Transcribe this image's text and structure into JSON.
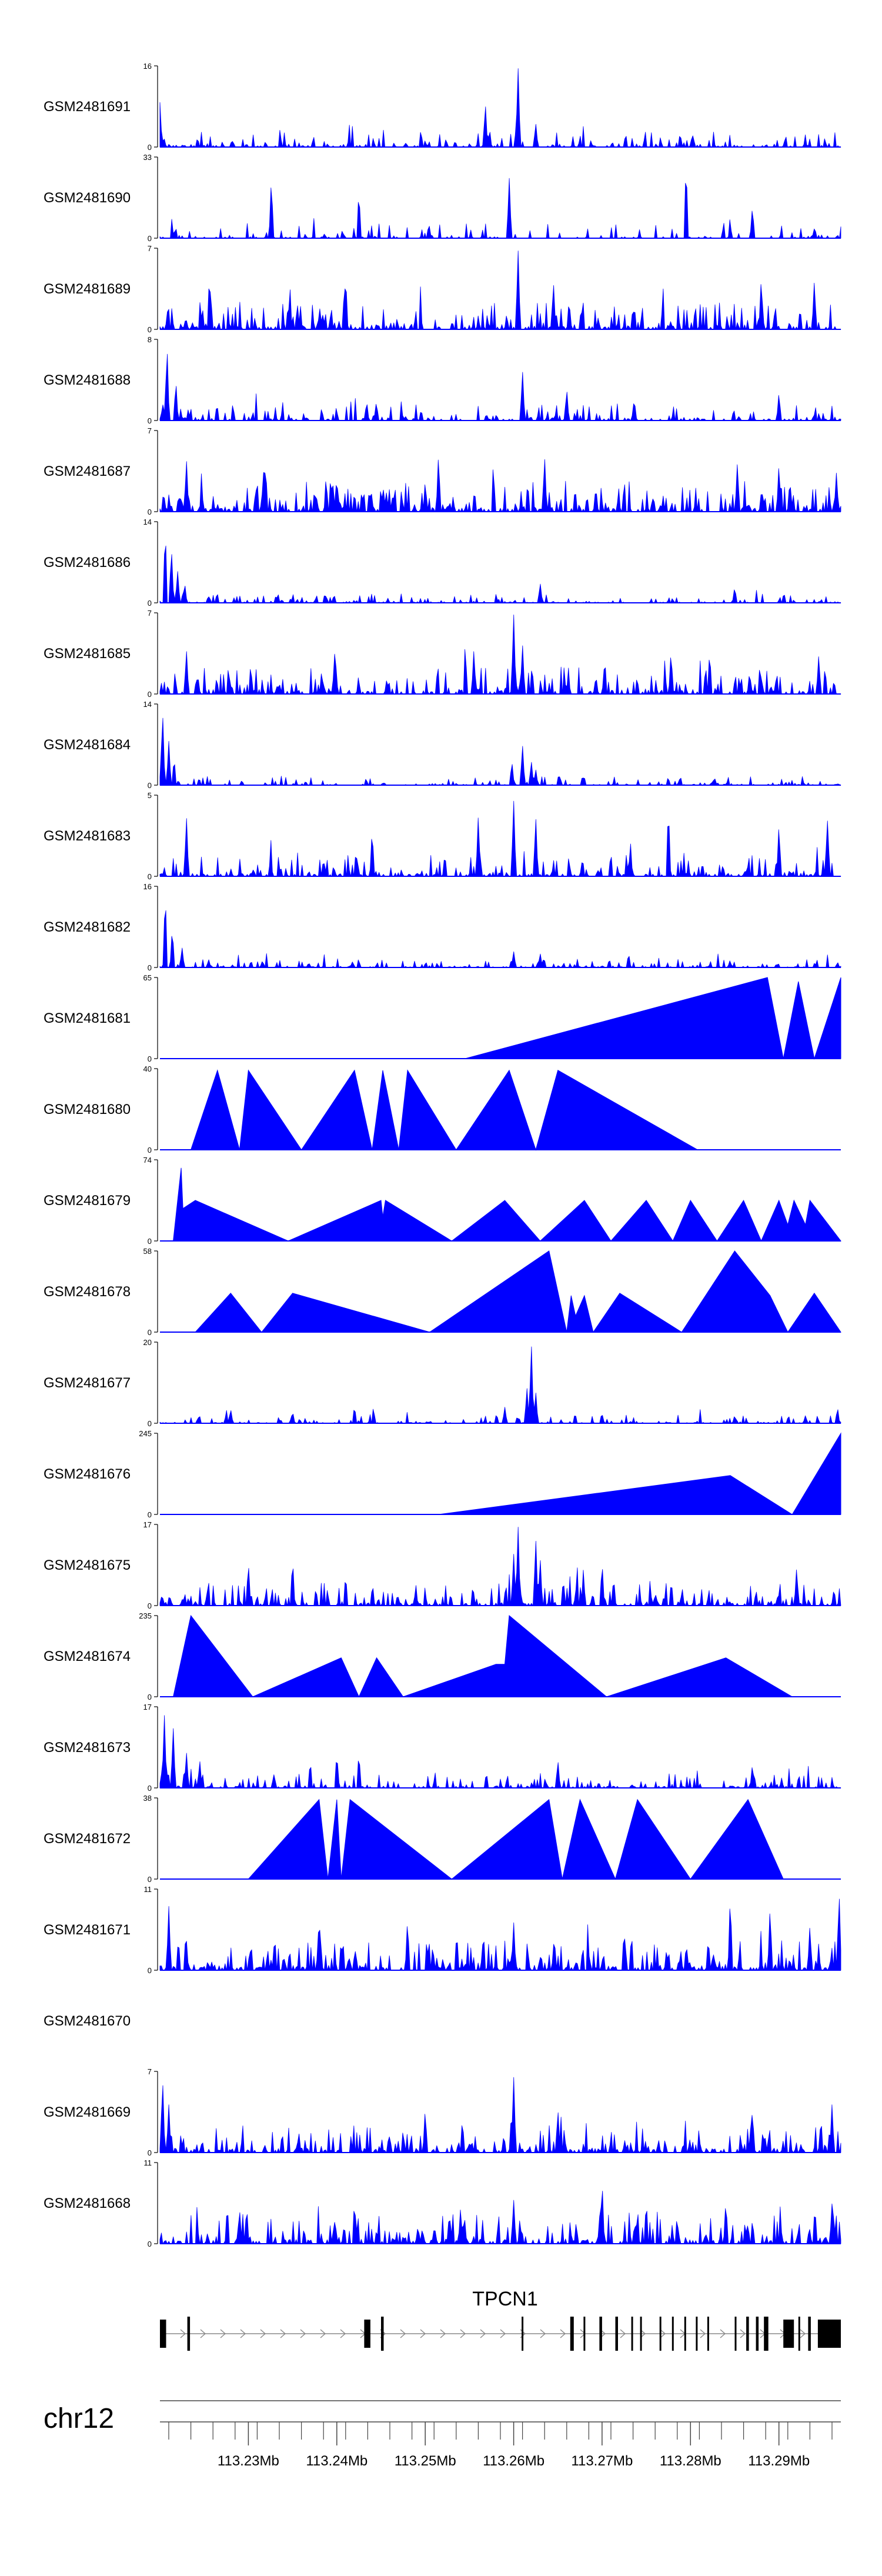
{
  "chart_data": {
    "type": "area",
    "title": "",
    "chromosome": "chr12",
    "gene": "TPCN1",
    "xlim_mb": [
      113.22,
      113.297
    ],
    "x_ticks": [
      "113.23Mb",
      "113.24Mb",
      "113.25Mb",
      "113.26Mb",
      "113.27Mb",
      "113.28Mb",
      "113.29Mb"
    ],
    "x_tick_values_mb": [
      113.23,
      113.24,
      113.25,
      113.26,
      113.27,
      113.28,
      113.29
    ],
    "fill_color": "#0000ff",
    "gene_color": "#000000",
    "axis_color": "#444444",
    "exons_mb": [
      [
        113.22,
        113.2207
      ],
      [
        113.2231,
        113.2234
      ],
      [
        113.2431,
        113.2438
      ],
      [
        113.245,
        113.2453
      ],
      [
        113.2609,
        113.2611
      ],
      [
        113.2664,
        113.2668
      ],
      [
        113.2679,
        113.2681
      ],
      [
        113.2697,
        113.27
      ],
      [
        113.2715,
        113.2718
      ],
      [
        113.2733,
        113.2735
      ],
      [
        113.2743,
        113.2745
      ],
      [
        113.2765,
        113.2767
      ],
      [
        113.2779,
        113.2781
      ],
      [
        113.2793,
        113.2795
      ],
      [
        113.2806,
        113.2808
      ],
      [
        113.2819,
        113.2821
      ],
      [
        113.285,
        113.2852
      ],
      [
        113.2863,
        113.2866
      ],
      [
        113.2874,
        113.2877
      ],
      [
        113.2883,
        113.2888
      ],
      [
        113.2905,
        113.2917
      ],
      [
        113.2922,
        113.2924
      ],
      [
        113.2933,
        113.2936
      ],
      [
        113.2944,
        113.297
      ]
    ],
    "series": [
      {
        "name": "GSM2481691",
        "ymax": "16",
        "kind": "noise",
        "density": 0.42,
        "base": 0.1,
        "seed": 11,
        "peaks": [
          [
            113.22,
            0.55
          ],
          [
            113.2568,
            0.55
          ],
          [
            113.2605,
            1.0
          ],
          [
            113.2625,
            0.3
          ]
        ]
      },
      {
        "name": "GSM2481690",
        "ymax": "33",
        "kind": "noise",
        "density": 0.28,
        "base": 0.1,
        "seed": 22,
        "peaks": [
          [
            113.2326,
            0.75
          ],
          [
            113.2425,
            0.6
          ],
          [
            113.2595,
            0.75
          ],
          [
            113.2795,
            0.95
          ],
          [
            113.287,
            0.4
          ]
        ]
      },
      {
        "name": "GSM2481689",
        "ymax": "7",
        "kind": "noise",
        "density": 0.55,
        "base": 0.18,
        "seed": 33,
        "peaks": [
          [
            113.2256,
            0.7
          ],
          [
            113.241,
            0.7
          ],
          [
            113.2605,
            1.0
          ],
          [
            113.2645,
            0.6
          ],
          [
            113.288,
            0.65
          ],
          [
            113.294,
            0.6
          ]
        ]
      },
      {
        "name": "GSM2481688",
        "ymax": "8",
        "kind": "noise",
        "density": 0.45,
        "base": 0.12,
        "seed": 44,
        "peaks": [
          [
            113.2208,
            0.95
          ],
          [
            113.2218,
            0.5
          ],
          [
            113.261,
            0.62
          ],
          [
            113.266,
            0.4
          ],
          [
            113.29,
            0.35
          ]
        ]
      },
      {
        "name": "GSM2481687",
        "ymax": "7",
        "kind": "noise",
        "density": 0.6,
        "base": 0.2,
        "seed": 55,
        "peaks": [
          [
            113.223,
            0.65
          ],
          [
            113.2318,
            0.7
          ],
          [
            113.2515,
            0.72
          ],
          [
            113.2635,
            0.7
          ],
          [
            113.2853,
            0.62
          ],
          [
            113.29,
            0.6
          ],
          [
            113.2965,
            0.48
          ]
        ]
      },
      {
        "name": "GSM2481686",
        "ymax": "14",
        "kind": "noise",
        "density": 0.35,
        "base": 0.06,
        "seed": 66,
        "peaks": [
          [
            113.2206,
            0.95
          ],
          [
            113.2213,
            0.7
          ],
          [
            113.222,
            0.4
          ],
          [
            113.2228,
            0.25
          ],
          [
            113.263,
            0.25
          ],
          [
            113.285,
            0.2
          ]
        ]
      },
      {
        "name": "GSM2481685",
        "ymax": "7",
        "kind": "noise",
        "density": 0.55,
        "base": 0.18,
        "seed": 77,
        "peaks": [
          [
            113.223,
            0.55
          ],
          [
            113.2398,
            0.6
          ],
          [
            113.2555,
            0.55
          ],
          [
            113.26,
            1.0
          ],
          [
            113.261,
            0.62
          ],
          [
            113.2778,
            0.55
          ],
          [
            113.2945,
            0.48
          ]
        ]
      },
      {
        "name": "GSM2481684",
        "ymax": "14",
        "kind": "noise",
        "density": 0.35,
        "base": 0.06,
        "seed": 88,
        "peaks": [
          [
            113.2203,
            0.95
          ],
          [
            113.221,
            0.55
          ],
          [
            113.2216,
            0.35
          ],
          [
            113.2598,
            0.3
          ],
          [
            113.261,
            0.5
          ],
          [
            113.262,
            0.3
          ],
          [
            113.2625,
            0.2
          ]
        ]
      },
      {
        "name": "GSM2481683",
        "ymax": "5",
        "kind": "noise",
        "density": 0.48,
        "base": 0.14,
        "seed": 99,
        "peaks": [
          [
            113.223,
            0.75
          ],
          [
            113.244,
            0.6
          ],
          [
            113.256,
            0.75
          ],
          [
            113.26,
            0.95
          ],
          [
            113.2625,
            0.75
          ],
          [
            113.2775,
            0.9
          ],
          [
            113.29,
            0.65
          ],
          [
            113.2955,
            0.7
          ]
        ]
      },
      {
        "name": "GSM2481682",
        "ymax": "16",
        "kind": "noise",
        "density": 0.38,
        "base": 0.06,
        "seed": 111,
        "peaks": [
          [
            113.2206,
            0.95
          ],
          [
            113.2214,
            0.5
          ],
          [
            113.2225,
            0.25
          ],
          [
            113.26,
            0.2
          ],
          [
            113.263,
            0.18
          ],
          [
            113.273,
            0.18
          ]
        ]
      },
      {
        "name": "GSM2481681",
        "ymax": "65",
        "kind": "tri",
        "points": [
          [
            113.2545,
            0
          ],
          [
            113.2887,
            1.0
          ],
          [
            113.2905,
            0
          ],
          [
            113.2922,
            0.95
          ],
          [
            113.294,
            0
          ],
          [
            113.297,
            1.0
          ],
          [
            113.297,
            0
          ]
        ]
      },
      {
        "name": "GSM2481680",
        "ymax": "40",
        "kind": "tri",
        "points": [
          [
            113.2235,
            0
          ],
          [
            113.2265,
            0.98
          ],
          [
            113.229,
            0
          ],
          [
            113.23,
            0.98
          ],
          [
            113.236,
            0
          ],
          [
            113.242,
            0.98
          ],
          [
            113.244,
            0
          ],
          [
            113.2452,
            0.98
          ],
          [
            113.247,
            0
          ],
          [
            113.248,
            0.98
          ],
          [
            113.2535,
            0
          ],
          [
            113.2595,
            0.98
          ],
          [
            113.2625,
            0
          ],
          [
            113.265,
            0.98
          ],
          [
            113.2808,
            0
          ]
        ]
      },
      {
        "name": "GSM2481679",
        "ymax": "74",
        "kind": "tri",
        "points": [
          [
            113.2215,
            0
          ],
          [
            113.2224,
            0.9
          ],
          [
            113.2226,
            0.4
          ],
          [
            113.224,
            0.5
          ],
          [
            113.2345,
            0
          ],
          [
            113.245,
            0.5
          ],
          [
            113.2452,
            0.3
          ],
          [
            113.2455,
            0.5
          ],
          [
            113.253,
            0
          ],
          [
            113.259,
            0.5
          ],
          [
            113.263,
            0
          ],
          [
            113.268,
            0.5
          ],
          [
            113.271,
            0
          ],
          [
            113.275,
            0.5
          ],
          [
            113.278,
            0
          ],
          [
            113.28,
            0.5
          ],
          [
            113.283,
            0
          ],
          [
            113.286,
            0.5
          ],
          [
            113.288,
            0
          ],
          [
            113.29,
            0.5
          ],
          [
            113.291,
            0.2
          ],
          [
            113.2917,
            0.5
          ],
          [
            113.293,
            0.2
          ],
          [
            113.2935,
            0.5
          ],
          [
            113.297,
            0
          ]
        ]
      },
      {
        "name": "GSM2481678",
        "ymax": "58",
        "kind": "tri",
        "points": [
          [
            113.224,
            0
          ],
          [
            113.228,
            0.48
          ],
          [
            113.2315,
            0
          ],
          [
            113.235,
            0.48
          ],
          [
            113.2505,
            0
          ],
          [
            113.264,
            1.0
          ],
          [
            113.266,
            0
          ],
          [
            113.2665,
            0.45
          ],
          [
            113.267,
            0.2
          ],
          [
            113.268,
            0.45
          ],
          [
            113.269,
            0
          ],
          [
            113.272,
            0.48
          ],
          [
            113.279,
            0
          ],
          [
            113.285,
            1.0
          ],
          [
            113.289,
            0.45
          ],
          [
            113.291,
            0
          ],
          [
            113.294,
            0.48
          ],
          [
            113.297,
            0
          ]
        ]
      },
      {
        "name": "GSM2481677",
        "ymax": "20",
        "kind": "noise",
        "density": 0.3,
        "base": 0.06,
        "seed": 133,
        "peaks": [
          [
            113.228,
            0.18
          ],
          [
            113.235,
            0.15
          ],
          [
            113.242,
            0.22
          ],
          [
            113.259,
            0.2
          ],
          [
            113.2615,
            0.45
          ],
          [
            113.262,
            1.0
          ],
          [
            113.2625,
            0.4
          ],
          [
            113.27,
            0.12
          ],
          [
            113.285,
            0.1
          ],
          [
            113.293,
            0.1
          ]
        ]
      },
      {
        "name": "GSM2481676",
        "ymax": "245",
        "kind": "tri",
        "points": [
          [
            113.2515,
            0
          ],
          [
            113.2845,
            0.48
          ],
          [
            113.2915,
            0
          ],
          [
            113.297,
            1.0
          ],
          [
            113.297,
            0
          ]
        ]
      },
      {
        "name": "GSM2481675",
        "ymax": "17",
        "kind": "noise",
        "density": 0.5,
        "base": 0.15,
        "seed": 155,
        "peaks": [
          [
            113.23,
            0.55
          ],
          [
            113.235,
            0.6
          ],
          [
            113.241,
            0.4
          ],
          [
            113.26,
            0.65
          ],
          [
            113.2605,
            1.0
          ],
          [
            113.2625,
            0.85
          ],
          [
            113.263,
            0.6
          ],
          [
            113.27,
            0.55
          ],
          [
            113.292,
            0.48
          ]
        ]
      },
      {
        "name": "GSM2481674",
        "ymax": "235",
        "kind": "tri",
        "points": [
          [
            113.2215,
            0
          ],
          [
            113.2235,
            1.0
          ],
          [
            113.2305,
            0
          ],
          [
            113.2405,
            0.48
          ],
          [
            113.2425,
            0
          ],
          [
            113.2445,
            0.48
          ],
          [
            113.2475,
            0
          ],
          [
            113.258,
            0.4
          ],
          [
            113.259,
            0.4
          ],
          [
            113.2595,
            1.0
          ],
          [
            113.2705,
            0
          ],
          [
            113.284,
            0.48
          ],
          [
            113.2915,
            0
          ]
        ]
      },
      {
        "name": "GSM2481673",
        "ymax": "17",
        "kind": "noise",
        "density": 0.42,
        "base": 0.1,
        "seed": 177,
        "peaks": [
          [
            113.2205,
            0.9
          ],
          [
            113.2215,
            0.75
          ],
          [
            113.223,
            0.45
          ],
          [
            113.2245,
            0.35
          ],
          [
            113.237,
            0.35
          ],
          [
            113.24,
            0.45
          ],
          [
            113.2425,
            0.45
          ],
          [
            113.265,
            0.35
          ],
          [
            113.287,
            0.3
          ]
        ]
      },
      {
        "name": "GSM2481672",
        "ymax": "38",
        "kind": "tri",
        "points": [
          [
            113.23,
            0
          ],
          [
            113.238,
            0.98
          ],
          [
            113.239,
            0
          ],
          [
            113.24,
            0.98
          ],
          [
            113.2405,
            0
          ],
          [
            113.2415,
            0.98
          ],
          [
            113.253,
            0
          ],
          [
            113.264,
            0.98
          ],
          [
            113.2655,
            0
          ],
          [
            113.2675,
            0.98
          ],
          [
            113.2715,
            0
          ],
          [
            113.274,
            0.98
          ],
          [
            113.28,
            0
          ],
          [
            113.2865,
            0.98
          ],
          [
            113.2905,
            0
          ]
        ]
      },
      {
        "name": "GSM2481671",
        "ymax": "11",
        "kind": "noise",
        "density": 0.6,
        "base": 0.2,
        "seed": 199,
        "peaks": [
          [
            113.221,
            0.8
          ],
          [
            113.238,
            0.7
          ],
          [
            113.248,
            0.65
          ],
          [
            113.26,
            0.6
          ],
          [
            113.2725,
            0.5
          ],
          [
            113.2845,
            0.95
          ],
          [
            113.289,
            0.8
          ],
          [
            113.2935,
            0.55
          ],
          [
            113.2968,
            1.0
          ]
        ]
      },
      {
        "name": "GSM2481670",
        "ymax": "",
        "kind": "empty"
      },
      {
        "name": "GSM2481669",
        "ymax": "7",
        "kind": "noise",
        "density": 0.55,
        "base": 0.18,
        "seed": 211,
        "peaks": [
          [
            113.2203,
            0.95
          ],
          [
            113.221,
            0.6
          ],
          [
            113.25,
            0.55
          ],
          [
            113.26,
            0.95
          ],
          [
            113.265,
            0.55
          ],
          [
            113.287,
            0.55
          ],
          [
            113.296,
            0.6
          ]
        ]
      },
      {
        "name": "GSM2481668",
        "ymax": "11",
        "kind": "noise",
        "density": 0.55,
        "base": 0.2,
        "seed": 233,
        "peaks": [
          [
            113.229,
            0.45
          ],
          [
            113.242,
            0.55
          ],
          [
            113.254,
            0.45
          ],
          [
            113.26,
            0.55
          ],
          [
            113.27,
            0.8
          ],
          [
            113.275,
            0.55
          ],
          [
            113.284,
            0.55
          ],
          [
            113.296,
            0.5
          ]
        ]
      }
    ]
  }
}
